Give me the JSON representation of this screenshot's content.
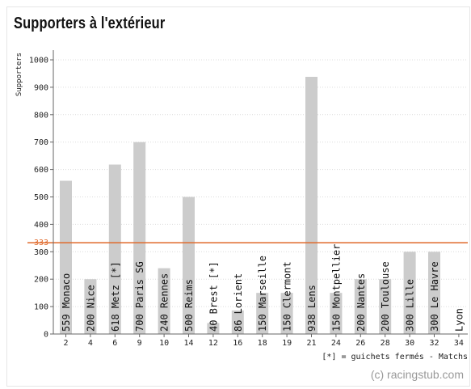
{
  "title": "Supporters à l'extérieur",
  "chart_data": {
    "type": "bar",
    "title": "Supporters à l'extérieur",
    "ylabel": "Supporters",
    "ylim": [
      0,
      1000
    ],
    "yticks": [
      0,
      100,
      200,
      300,
      400,
      500,
      600,
      700,
      800,
      900,
      1000
    ],
    "reference_line": {
      "value": 333,
      "label": "333",
      "color": "#e06a2c"
    },
    "bar_color": "#cccccc",
    "categories": [
      "2",
      "4",
      "6",
      "9",
      "10",
      "14",
      "12",
      "16",
      "18",
      "19",
      "21",
      "24",
      "26",
      "28",
      "30",
      "32",
      "34"
    ],
    "values": [
      559,
      200,
      618,
      700,
      240,
      500,
      40,
      86,
      150,
      150,
      938,
      150,
      200,
      200,
      300,
      300,
      null
    ],
    "bar_labels": [
      "559 Monaco",
      "200 Nice",
      "618 Metz [*]",
      "700 Paris SG",
      "240 Rennes",
      "500 Reims",
      "40 Brest [*]",
      "86 Lorient",
      "150 Marseille",
      "150 Clermont",
      "938 Lens",
      "150 Montpellier",
      "200 Nantes",
      "200 Toulouse",
      "300 Lille",
      "300 Le Havre",
      "Lyon"
    ],
    "footnote": "[*] = guichets fermés - Matchs",
    "credit": "(c) racingstub.com"
  }
}
